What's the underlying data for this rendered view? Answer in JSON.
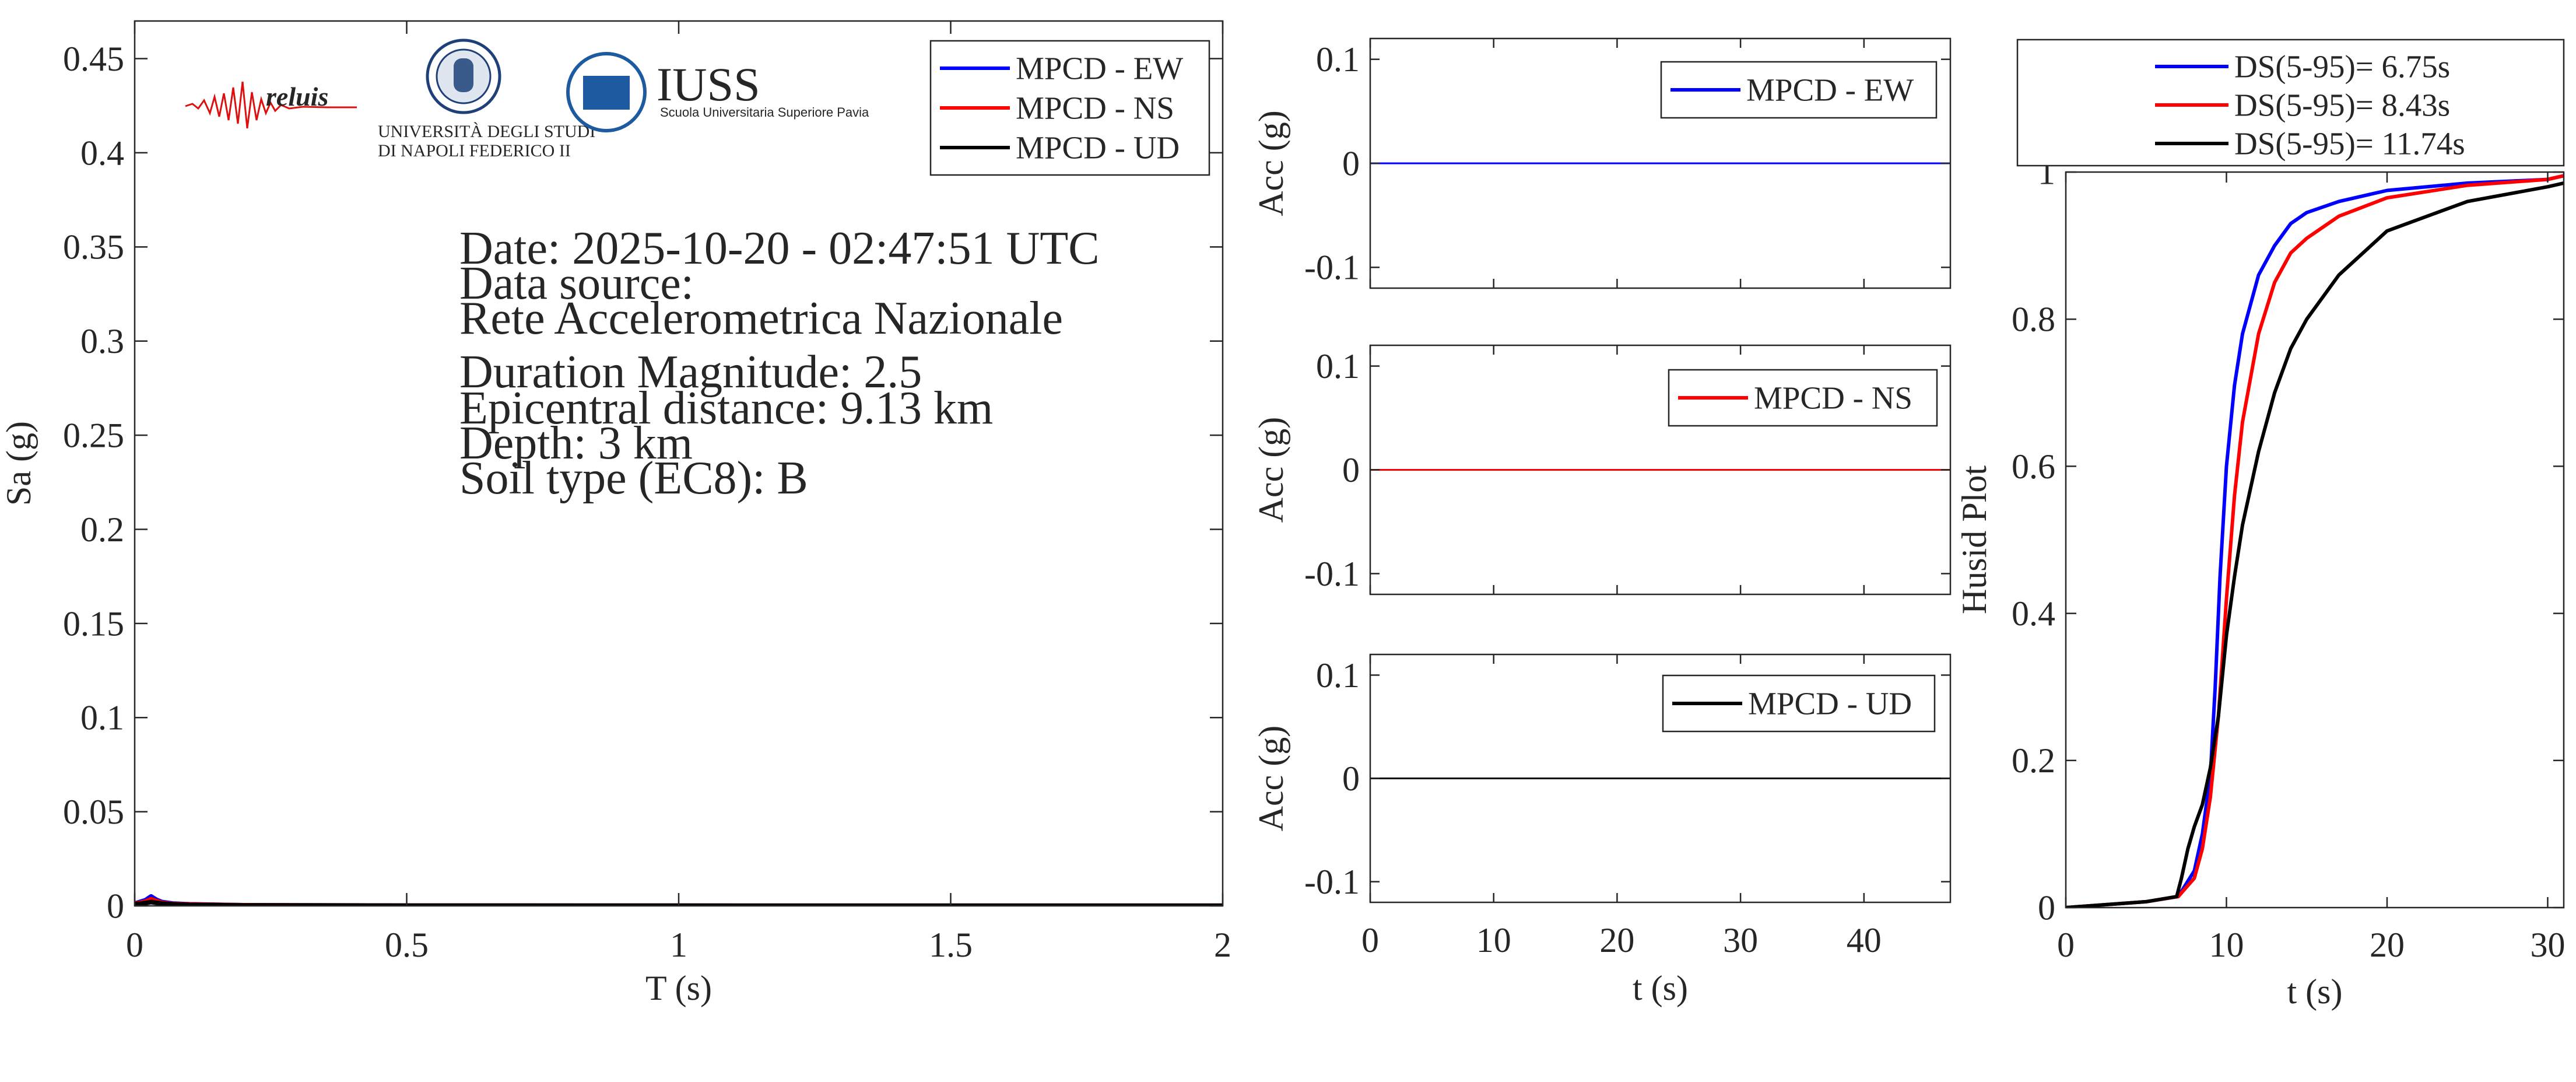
{
  "logos": {
    "reluis": "reluis",
    "unina": [
      "UNIVERSITÀ DEGLI STUDI",
      "DI NAPOLI FEDERICO II"
    ],
    "iuss": "IUSS",
    "iuss_sub": "Scuola Universitaria Superiore Pavia"
  },
  "info": {
    "date": "Date: 2025-10-20 - 02:47:51 UTC",
    "source_label": "Data source:",
    "source": "Rete Accelerometrica Nazionale",
    "magnitude": "Duration Magnitude: 2.5",
    "distance": "Epicentral distance: 9.13 km",
    "depth": "Depth: 3 km",
    "soil": "Soil type (EC8): B"
  },
  "colors": {
    "ew": "#0000ff",
    "ns": "#ff0000",
    "ud": "#000000",
    "axis": "#262626"
  },
  "chart_data": [
    {
      "type": "line",
      "xlabel": "T (s)",
      "ylabel": "Sa (g)",
      "xlim": [
        0,
        2
      ],
      "ylim": [
        0,
        0.47
      ],
      "xticks": [
        "0",
        "0.5",
        "1",
        "1.5",
        "2"
      ],
      "yticks": [
        "0",
        "0.05",
        "0.1",
        "0.15",
        "0.2",
        "0.25",
        "0.3",
        "0.35",
        "0.4",
        "0.45"
      ],
      "legend_position": "top-right",
      "series": [
        {
          "name": "MPCD - EW",
          "color": "#0000ff",
          "x": [
            0,
            0.02,
            0.03,
            0.04,
            0.05,
            0.07,
            0.1,
            0.2,
            0.5,
            1,
            1.5,
            2
          ],
          "y": [
            0.0012,
            0.003,
            0.005,
            0.0032,
            0.002,
            0.0012,
            0.0008,
            0.0003,
            0.0001,
            5e-05,
            3e-05,
            2e-05
          ]
        },
        {
          "name": "MPCD - NS",
          "color": "#ff0000",
          "x": [
            0,
            0.02,
            0.03,
            0.04,
            0.05,
            0.07,
            0.1,
            0.2,
            0.5,
            1,
            1.5,
            2
          ],
          "y": [
            0.0011,
            0.0022,
            0.0035,
            0.0025,
            0.0016,
            0.001,
            0.0007,
            0.0003,
            0.0001,
            5e-05,
            3e-05,
            2e-05
          ]
        },
        {
          "name": "MPCD - UD",
          "color": "#000000",
          "x": [
            0,
            0.02,
            0.03,
            0.04,
            0.05,
            0.07,
            0.1,
            0.2,
            0.5,
            1,
            1.5,
            2
          ],
          "y": [
            0.0009,
            0.0015,
            0.002,
            0.0016,
            0.0012,
            0.0008,
            0.0005,
            0.0002,
            0.0001,
            4e-05,
            2e-05,
            2e-05
          ]
        }
      ]
    },
    {
      "type": "line",
      "ylabel": "Acc (g)",
      "xlim": [
        0,
        47
      ],
      "ylim": [
        -0.12,
        0.12
      ],
      "yticks": [
        "0.1",
        "0",
        "-0.1"
      ],
      "legend_position": "top-right",
      "series": [
        {
          "name": "MPCD - EW",
          "color": "#0000ff",
          "x": [
            0,
            47
          ],
          "y": [
            0,
            0
          ]
        }
      ]
    },
    {
      "type": "line",
      "ylabel": "Acc (g)",
      "xlim": [
        0,
        47
      ],
      "ylim": [
        -0.12,
        0.12
      ],
      "yticks": [
        "0.1",
        "0",
        "-0.1"
      ],
      "legend_position": "top-right",
      "series": [
        {
          "name": "MPCD - NS",
          "color": "#ff0000",
          "x": [
            0,
            47
          ],
          "y": [
            0,
            0
          ]
        }
      ]
    },
    {
      "type": "line",
      "xlabel": "t (s)",
      "ylabel": "Acc (g)",
      "xlim": [
        0,
        47
      ],
      "ylim": [
        -0.12,
        0.12
      ],
      "xticks": [
        "0",
        "10",
        "20",
        "30",
        "40"
      ],
      "yticks": [
        "0.1",
        "0",
        "-0.1"
      ],
      "legend_position": "top-right",
      "series": [
        {
          "name": "MPCD - UD",
          "color": "#000000",
          "x": [
            0,
            47
          ],
          "y": [
            0,
            0
          ]
        }
      ]
    },
    {
      "type": "line",
      "xlabel": "t (s)",
      "ylabel": "Husid Plot",
      "xlim": [
        0,
        31
      ],
      "ylim": [
        0,
        1
      ],
      "xticks": [
        "0",
        "10",
        "20",
        "30"
      ],
      "yticks": [
        "0",
        "0.2",
        "0.4",
        "0.6",
        "0.8",
        "1"
      ],
      "legend_position": "above plot",
      "series": [
        {
          "name": "DS(5-95)= 6.75s",
          "color": "#0000ff",
          "x": [
            0,
            5,
            7,
            8,
            8.5,
            9,
            9.3,
            9.6,
            10,
            10.5,
            11,
            12,
            13,
            14,
            15,
            17,
            20,
            25,
            30,
            31
          ],
          "y": [
            0,
            0.008,
            0.015,
            0.05,
            0.1,
            0.18,
            0.3,
            0.45,
            0.6,
            0.71,
            0.78,
            0.86,
            0.9,
            0.93,
            0.945,
            0.96,
            0.975,
            0.985,
            0.99,
            0.995
          ]
        },
        {
          "name": "DS(5-95)= 8.43s",
          "color": "#ff0000",
          "x": [
            0,
            5,
            7,
            8,
            8.5,
            9,
            9.5,
            10,
            10.5,
            11,
            12,
            13,
            14,
            15,
            17,
            20,
            25,
            30,
            31
          ],
          "y": [
            0,
            0.008,
            0.015,
            0.04,
            0.08,
            0.15,
            0.26,
            0.42,
            0.56,
            0.66,
            0.78,
            0.85,
            0.89,
            0.91,
            0.94,
            0.965,
            0.982,
            0.99,
            0.995
          ]
        },
        {
          "name": "DS(5-95)= 11.74s",
          "color": "#000000",
          "x": [
            0,
            5,
            6.9,
            7.2,
            7.6,
            8,
            8.5,
            9,
            9.5,
            10,
            10.5,
            11,
            12,
            13,
            14,
            15,
            17,
            20,
            25,
            30,
            31
          ],
          "y": [
            0,
            0.008,
            0.015,
            0.04,
            0.08,
            0.11,
            0.14,
            0.19,
            0.26,
            0.37,
            0.45,
            0.52,
            0.62,
            0.7,
            0.76,
            0.8,
            0.86,
            0.92,
            0.96,
            0.98,
            0.985
          ]
        }
      ]
    }
  ]
}
